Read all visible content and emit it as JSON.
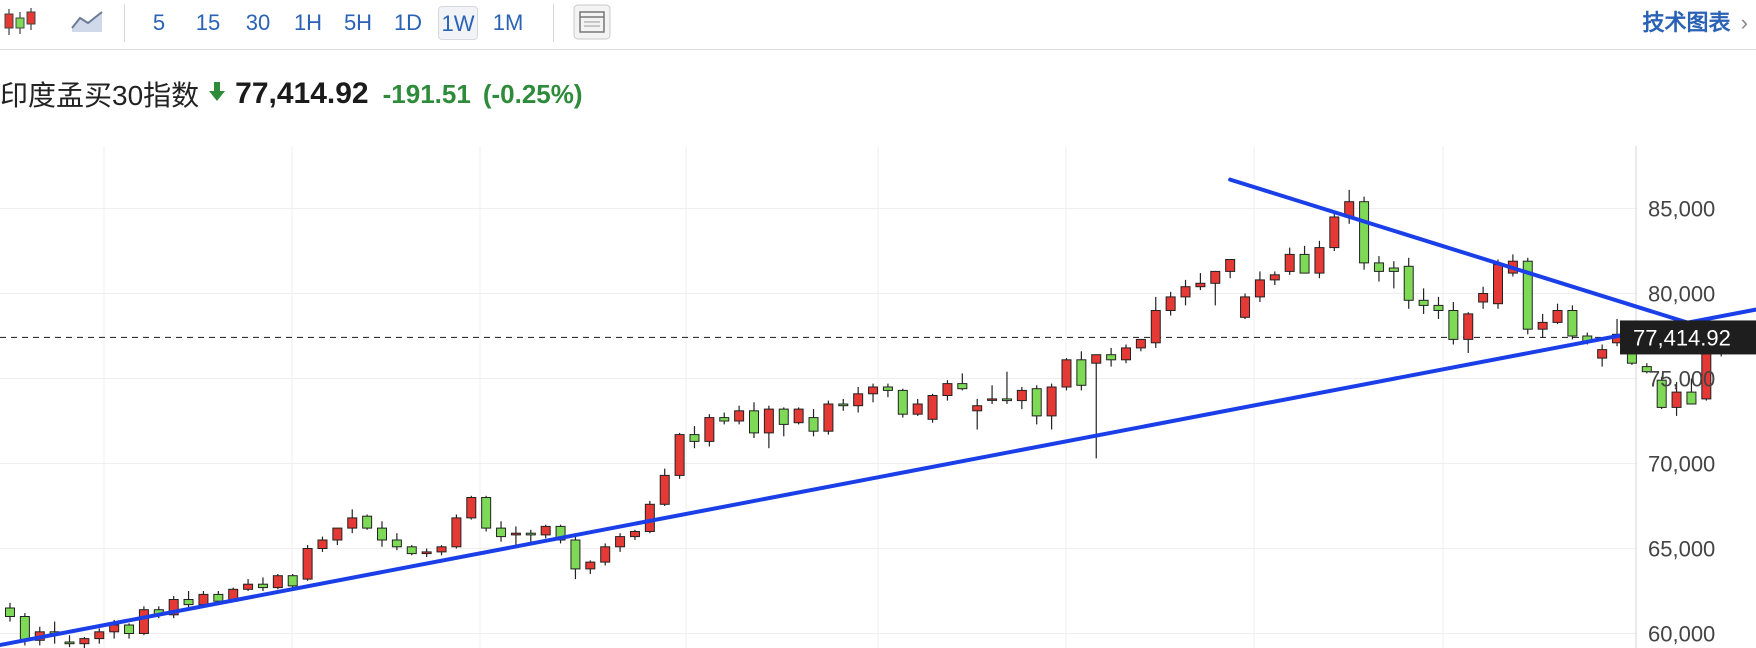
{
  "toolbar": {
    "candle_icon": "candlestick-chart-icon",
    "line_icon": "line-chart-icon",
    "timeframes": [
      "5",
      "15",
      "30",
      "1H",
      "5H",
      "1D",
      "1W",
      "1M"
    ],
    "active_timeframe": "1W",
    "layout_icon": "chart-layout-icon",
    "tech_chart_label": "技术图表",
    "tech_chart_chevron": "›"
  },
  "quote": {
    "name": "印度孟买30指数",
    "direction": "down",
    "price": "77,414.92",
    "change": "-191.51",
    "change_pct": "(-0.25%)"
  },
  "colors": {
    "up": "#7ed957",
    "down": "#e53935",
    "trendline": "#1a3fe8",
    "price_tag_bg": "#1e1e1e",
    "link": "#2a62b5",
    "negative": "#2e8b3a"
  },
  "chart_data": {
    "type": "candlestick",
    "timeframe": "1W",
    "y_axis": {
      "ticks": [
        "85,000",
        "80,000",
        "75,000",
        "70,000",
        "65,000",
        "60,000"
      ],
      "tick_values": [
        85000,
        80000,
        75000,
        70000,
        65000,
        60000
      ],
      "side": "right"
    },
    "grid": true,
    "last_price": 77414.92,
    "last_price_label": "77,414.92",
    "candles": [
      [
        61500,
        61800,
        60700,
        61000
      ],
      [
        61000,
        61200,
        59300,
        59600
      ],
      [
        59600,
        60400,
        59300,
        60100
      ],
      [
        60100,
        60700,
        59400,
        60000
      ],
      [
        59500,
        59900,
        59200,
        59400
      ],
      [
        59400,
        59800,
        59000,
        59700
      ],
      [
        59700,
        60300,
        59400,
        60100
      ],
      [
        60100,
        60800,
        59700,
        60500
      ],
      [
        60500,
        60600,
        59700,
        60000
      ],
      [
        60000,
        61600,
        59900,
        61400
      ],
      [
        61400,
        61600,
        60900,
        61100
      ],
      [
        61100,
        62200,
        60900,
        62000
      ],
      [
        62000,
        62500,
        61500,
        61700
      ],
      [
        61700,
        62500,
        61500,
        62300
      ],
      [
        62300,
        62500,
        61800,
        61900
      ],
      [
        61900,
        62700,
        61900,
        62600
      ],
      [
        62600,
        63200,
        62500,
        62900
      ],
      [
        62900,
        63300,
        62500,
        62700
      ],
      [
        62700,
        63500,
        62600,
        63400
      ],
      [
        63400,
        63500,
        62600,
        62800
      ],
      [
        63200,
        65200,
        63100,
        65000
      ],
      [
        65000,
        65700,
        64800,
        65500
      ],
      [
        65500,
        66000,
        65200,
        66200
      ],
      [
        66200,
        67300,
        65900,
        66800
      ],
      [
        66900,
        67000,
        66100,
        66200
      ],
      [
        66200,
        66600,
        65100,
        65500
      ],
      [
        65500,
        65900,
        64900,
        65100
      ],
      [
        65100,
        65200,
        64600,
        64700
      ],
      [
        64700,
        65000,
        64500,
        64800
      ],
      [
        64800,
        65200,
        64600,
        65100
      ],
      [
        65100,
        67000,
        65000,
        66800
      ],
      [
        66800,
        68100,
        66700,
        68000
      ],
      [
        68000,
        68100,
        66000,
        66200
      ],
      [
        66200,
        66600,
        65400,
        65700
      ],
      [
        65800,
        66300,
        65000,
        65900
      ],
      [
        65900,
        66100,
        65300,
        65800
      ],
      [
        65800,
        66400,
        65600,
        66300
      ],
      [
        66300,
        66400,
        65300,
        65500
      ],
      [
        65500,
        65700,
        63200,
        63800
      ],
      [
        63800,
        64300,
        63500,
        64200
      ],
      [
        64200,
        65300,
        64000,
        65100
      ],
      [
        65100,
        65900,
        64800,
        65700
      ],
      [
        65700,
        66100,
        65500,
        66000
      ],
      [
        66000,
        67800,
        65900,
        67600
      ],
      [
        67600,
        69700,
        67500,
        69300
      ],
      [
        69300,
        71800,
        69100,
        71700
      ],
      [
        71700,
        72200,
        70900,
        71300
      ],
      [
        71300,
        72900,
        71000,
        72700
      ],
      [
        72700,
        73000,
        72300,
        72500
      ],
      [
        72500,
        73400,
        72300,
        73100
      ],
      [
        73100,
        73600,
        71500,
        71800
      ],
      [
        71800,
        73400,
        70900,
        73200
      ],
      [
        73200,
        73300,
        71600,
        72300
      ],
      [
        72400,
        73300,
        72300,
        73200
      ],
      [
        72700,
        73200,
        71600,
        71900
      ],
      [
        71900,
        73700,
        71700,
        73500
      ],
      [
        73500,
        73800,
        73100,
        73400
      ],
      [
        73400,
        74500,
        73000,
        74100
      ],
      [
        74100,
        74700,
        73600,
        74500
      ],
      [
        74500,
        74700,
        73900,
        74300
      ],
      [
        74300,
        74400,
        72700,
        72900
      ],
      [
        72900,
        73800,
        72800,
        73500
      ],
      [
        72600,
        74100,
        72400,
        74000
      ],
      [
        74000,
        74900,
        73700,
        74700
      ],
      [
        74700,
        75300,
        74300,
        74400
      ],
      [
        73100,
        73800,
        72000,
        73400
      ],
      [
        73800,
        74600,
        73500,
        73800
      ],
      [
        73800,
        75400,
        73500,
        73700
      ],
      [
        73700,
        74500,
        73200,
        74300
      ],
      [
        74400,
        74600,
        72300,
        72800
      ],
      [
        72800,
        74700,
        72000,
        74500
      ],
      [
        74500,
        76200,
        74300,
        76100
      ],
      [
        76100,
        76600,
        74300,
        74600
      ],
      [
        75900,
        76300,
        70300,
        76400
      ],
      [
        76400,
        76800,
        75700,
        76100
      ],
      [
        76100,
        77000,
        75900,
        76800
      ],
      [
        76800,
        77300,
        76600,
        77300
      ],
      [
        77100,
        79800,
        76800,
        79000
      ],
      [
        79000,
        80100,
        78700,
        79800
      ],
      [
        79800,
        80800,
        79300,
        80400
      ],
      [
        80400,
        81200,
        80200,
        80600
      ],
      [
        80600,
        81300,
        79300,
        81300
      ],
      [
        81300,
        82000,
        80900,
        82000
      ],
      [
        78600,
        80000,
        78500,
        79800
      ],
      [
        79800,
        81300,
        79500,
        80800
      ],
      [
        80800,
        81300,
        80500,
        81100
      ],
      [
        81300,
        82700,
        81100,
        82300
      ],
      [
        82300,
        82800,
        81200,
        81200
      ],
      [
        81200,
        83100,
        80900,
        82700
      ],
      [
        82700,
        84800,
        82500,
        84500
      ],
      [
        84500,
        86100,
        84100,
        85400
      ],
      [
        85400,
        85700,
        81400,
        81800
      ],
      [
        81800,
        82200,
        80700,
        81300
      ],
      [
        81500,
        81900,
        80300,
        81300
      ],
      [
        81600,
        82100,
        79100,
        79600
      ],
      [
        79600,
        80300,
        78800,
        79300
      ],
      [
        79300,
        79800,
        78500,
        79000
      ],
      [
        79000,
        79500,
        77000,
        77300
      ],
      [
        77300,
        78900,
        76500,
        78800
      ],
      [
        79500,
        80400,
        79100,
        80000
      ],
      [
        79400,
        82000,
        79100,
        81700
      ],
      [
        81200,
        82300,
        81000,
        81900
      ],
      [
        81900,
        82100,
        77600,
        77900
      ],
      [
        77900,
        78800,
        77400,
        78300
      ],
      [
        78300,
        79400,
        78200,
        79000
      ],
      [
        79000,
        79300,
        77300,
        77500
      ],
      [
        77500,
        77700,
        77000,
        77200
      ],
      [
        76200,
        77000,
        75700,
        76700
      ],
      [
        77100,
        78500,
        76900,
        77600
      ],
      [
        77600,
        77700,
        75800,
        75900
      ],
      [
        75700,
        75900,
        75300,
        75400
      ],
      [
        74900,
        75100,
        73200,
        73300
      ],
      [
        73300,
        74800,
        72800,
        74200
      ],
      [
        74200,
        75000,
        73600,
        73500
      ],
      [
        73800,
        76500,
        73700,
        76600
      ],
      [
        77200,
        78200,
        76300,
        77414.92
      ]
    ],
    "trendlines": [
      {
        "name": "",
        "from": [
          -2,
          59100
        ],
        "to": [
          120,
          79500
        ]
      },
      {
        "name": "",
        "from": [
          82,
          86700
        ],
        "to": [
          120,
          76300
        ]
      }
    ]
  }
}
